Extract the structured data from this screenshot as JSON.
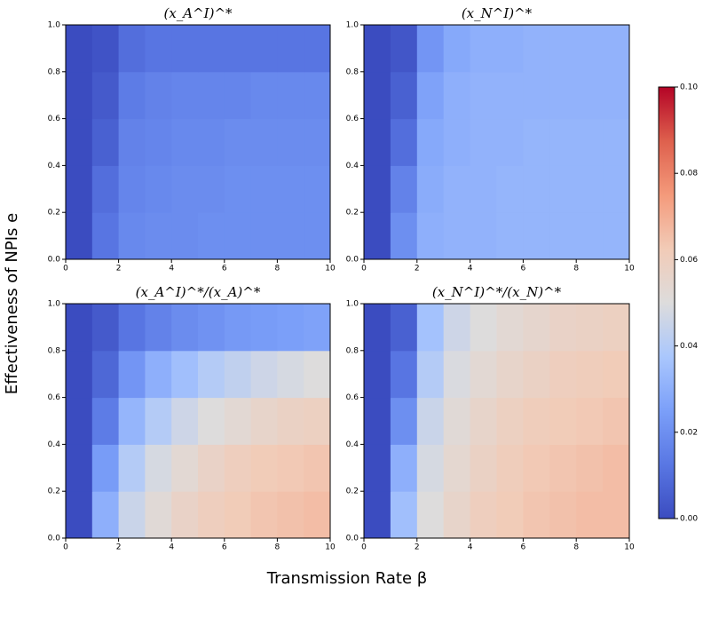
{
  "chart_data": {
    "type": "heatmap",
    "xlabel": "Transmission Rate β",
    "ylabel": "Effectiveness of NPIs e",
    "colormap": "coolwarm",
    "xlim": [
      0,
      10
    ],
    "ylim": [
      0,
      1
    ],
    "xticks": [
      0,
      2,
      4,
      6,
      8,
      10
    ],
    "yticks": [
      {
        "value": 0,
        "label": "0.0"
      },
      {
        "value": 0.2,
        "label": "0.2"
      },
      {
        "value": 0.4,
        "label": "0.4"
      },
      {
        "value": 0.6,
        "label": "0.6"
      },
      {
        "value": 0.8,
        "label": "0.8"
      },
      {
        "value": 1,
        "label": "1.0"
      }
    ],
    "xbins": [
      0,
      1,
      2,
      3,
      4,
      5,
      6,
      7,
      8,
      9,
      10
    ],
    "ybins": [
      0,
      0.2,
      0.4,
      0.6,
      0.8,
      1
    ],
    "panels": [
      {
        "title": "(x_A^I)^*",
        "z": [
          [
            0,
            0.012,
            0.018,
            0.019,
            0.019,
            0.02,
            0.02,
            0.02,
            0.02,
            0.02
          ],
          [
            0,
            0.01,
            0.017,
            0.018,
            0.019,
            0.019,
            0.02,
            0.02,
            0.02,
            0.02
          ],
          [
            0,
            0.006,
            0.016,
            0.017,
            0.018,
            0.018,
            0.019,
            0.019,
            0.019,
            0.019
          ],
          [
            0,
            0.004,
            0.014,
            0.016,
            0.017,
            0.017,
            0.017,
            0.018,
            0.018,
            0.018
          ],
          [
            0,
            0.002,
            0.01,
            0.012,
            0.012,
            0.012,
            0.012,
            0.012,
            0.012,
            0.012
          ]
        ]
      },
      {
        "title": "(x_N^I)^*",
        "z": [
          [
            0,
            0.02,
            0.03,
            0.031,
            0.031,
            0.032,
            0.032,
            0.032,
            0.032,
            0.032
          ],
          [
            0,
            0.016,
            0.029,
            0.031,
            0.031,
            0.032,
            0.032,
            0.032,
            0.032,
            0.032
          ],
          [
            0,
            0.01,
            0.028,
            0.03,
            0.031,
            0.031,
            0.032,
            0.032,
            0.032,
            0.032
          ],
          [
            0,
            0.006,
            0.026,
            0.03,
            0.031,
            0.031,
            0.031,
            0.031,
            0.031,
            0.031
          ],
          [
            0,
            0.003,
            0.022,
            0.028,
            0.03,
            0.03,
            0.031,
            0.031,
            0.031,
            0.031
          ]
        ]
      },
      {
        "title": "(x_A^I)^*/(x_A)^*",
        "z": [
          [
            0,
            0.03,
            0.045,
            0.052,
            0.057,
            0.06,
            0.062,
            0.064,
            0.065,
            0.066
          ],
          [
            0,
            0.024,
            0.04,
            0.048,
            0.053,
            0.057,
            0.06,
            0.062,
            0.063,
            0.064
          ],
          [
            0,
            0.014,
            0.032,
            0.04,
            0.046,
            0.05,
            0.053,
            0.056,
            0.058,
            0.059
          ],
          [
            0,
            0.008,
            0.022,
            0.03,
            0.035,
            0.04,
            0.043,
            0.046,
            0.048,
            0.05
          ],
          [
            0,
            0.004,
            0.012,
            0.016,
            0.019,
            0.021,
            0.023,
            0.024,
            0.025,
            0.026
          ]
        ]
      },
      {
        "title": "(x_N^I)^*/(x_N)^*",
        "z": [
          [
            0,
            0.035,
            0.05,
            0.056,
            0.06,
            0.062,
            0.064,
            0.065,
            0.066,
            0.066
          ],
          [
            0,
            0.03,
            0.048,
            0.054,
            0.058,
            0.061,
            0.063,
            0.064,
            0.065,
            0.066
          ],
          [
            0,
            0.02,
            0.045,
            0.052,
            0.056,
            0.059,
            0.061,
            0.062,
            0.063,
            0.064
          ],
          [
            0,
            0.012,
            0.04,
            0.049,
            0.053,
            0.056,
            0.058,
            0.06,
            0.061,
            0.062
          ],
          [
            0,
            0.006,
            0.036,
            0.046,
            0.05,
            0.053,
            0.055,
            0.057,
            0.058,
            0.059
          ]
        ]
      }
    ],
    "colorbar": {
      "clim": [
        0,
        0.1
      ],
      "ticks": [
        {
          "value": 0,
          "label": "0.00"
        },
        {
          "value": 0.02,
          "label": "0.02"
        },
        {
          "value": 0.04,
          "label": "0.04"
        },
        {
          "value": 0.06,
          "label": "0.06"
        },
        {
          "value": 0.08,
          "label": "0.08"
        },
        {
          "value": 0.1,
          "label": "0.10"
        }
      ]
    }
  }
}
